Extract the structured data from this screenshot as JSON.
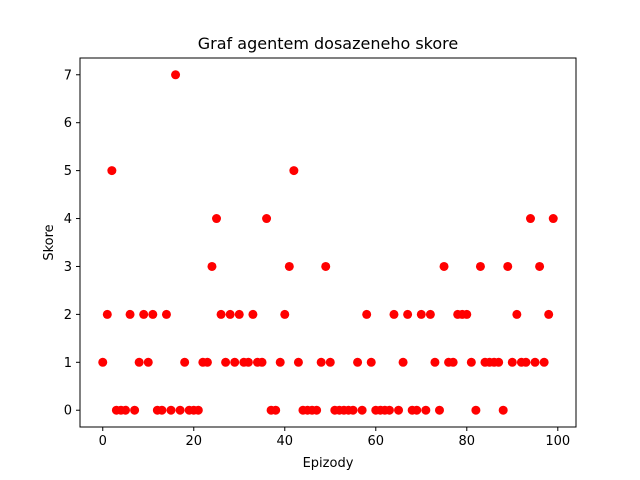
{
  "chart_data": {
    "type": "scatter",
    "title": "Graf agentem dosazeneho skore",
    "xlabel": "Epizody",
    "ylabel": "Skore",
    "xlim": [
      -5,
      104
    ],
    "ylim": [
      -0.35,
      7.35
    ],
    "xticks": [
      0,
      20,
      40,
      60,
      80,
      100
    ],
    "yticks": [
      0,
      1,
      2,
      3,
      4,
      5,
      6,
      7
    ],
    "grid": false,
    "marker_color": "#ff0000",
    "x": [
      0,
      1,
      2,
      3,
      4,
      5,
      6,
      7,
      8,
      9,
      10,
      11,
      12,
      13,
      14,
      15,
      16,
      17,
      18,
      19,
      20,
      21,
      22,
      23,
      24,
      25,
      26,
      27,
      28,
      29,
      30,
      31,
      32,
      33,
      34,
      35,
      36,
      37,
      38,
      39,
      40,
      41,
      42,
      43,
      44,
      45,
      46,
      47,
      48,
      49,
      50,
      51,
      52,
      53,
      54,
      55,
      56,
      57,
      58,
      59,
      60,
      61,
      62,
      63,
      64,
      65,
      66,
      67,
      68,
      69,
      70,
      71,
      72,
      73,
      74,
      75,
      76,
      77,
      78,
      79,
      80,
      81,
      82,
      83,
      84,
      85,
      86,
      87,
      88,
      89,
      90,
      91,
      92,
      93,
      94,
      95,
      96,
      97,
      98,
      99
    ],
    "y": [
      1,
      2,
      5,
      0,
      0,
      0,
      2,
      0,
      1,
      2,
      1,
      2,
      0,
      0,
      2,
      0,
      7,
      0,
      1,
      0,
      0,
      0,
      1,
      1,
      3,
      4,
      2,
      1,
      2,
      1,
      2,
      1,
      1,
      2,
      1,
      1,
      4,
      0,
      0,
      1,
      2,
      3,
      5,
      1,
      0,
      0,
      0,
      0,
      1,
      3,
      1,
      0,
      0,
      0,
      0,
      0,
      1,
      0,
      2,
      1,
      0,
      0,
      0,
      0,
      2,
      0,
      1,
      2,
      0,
      0,
      2,
      0,
      2,
      1,
      0,
      3,
      1,
      1,
      2,
      2,
      2,
      1,
      0,
      3,
      1,
      1,
      1,
      1,
      0,
      3,
      1,
      2,
      1,
      1,
      4,
      1,
      3,
      1,
      2,
      4
    ]
  }
}
